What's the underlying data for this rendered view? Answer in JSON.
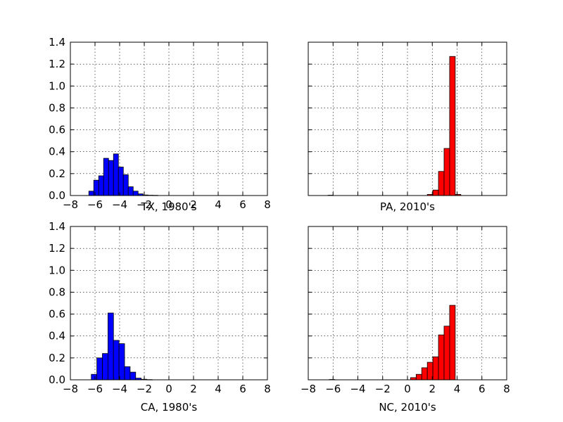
{
  "chart_data": [
    {
      "type": "bar",
      "xlabel": "TX, 1980's",
      "xlim": [
        -8,
        8
      ],
      "ylim": [
        0,
        1.4
      ],
      "xticks": [
        "−8",
        "−6",
        "−4",
        "−2",
        "0",
        "2",
        "4",
        "6",
        "8"
      ],
      "yticks": [
        "0.0",
        "0.2",
        "0.4",
        "0.6",
        "0.8",
        "1.0",
        "1.2",
        "1.4"
      ],
      "grid": true,
      "color": "#0000ff",
      "bin_edges": [
        -6.5,
        -6.1,
        -5.7,
        -5.3,
        -4.9,
        -4.5,
        -4.1,
        -3.7,
        -3.3,
        -2.9,
        -2.5,
        -2.1,
        -1.7,
        -1.3,
        -0.9
      ],
      "values": [
        0.04,
        0.14,
        0.18,
        0.34,
        0.32,
        0.38,
        0.26,
        0.19,
        0.08,
        0.04,
        0.015,
        0.005,
        0.003,
        0.002
      ]
    },
    {
      "type": "bar",
      "xlabel": "PA, 2010's",
      "xlim": [
        -8,
        8
      ],
      "ylim": [
        0,
        1.4
      ],
      "xticks": [],
      "yticks": [],
      "grid": true,
      "color": "#ff0000",
      "bin_edges": [
        -6.4,
        -6.0,
        1.6,
        2.05,
        2.5,
        2.95,
        3.4,
        3.85,
        4.3
      ],
      "values": [
        0.003,
        0.0,
        0.01,
        0.05,
        0.22,
        0.43,
        1.27,
        0.01
      ]
    },
    {
      "type": "bar",
      "xlabel": "CA, 1980's",
      "xlim": [
        -8,
        8
      ],
      "ylim": [
        0,
        1.4
      ],
      "xticks": [
        "−8",
        "−6",
        "−4",
        "−2",
        "0",
        "2",
        "4",
        "6",
        "8"
      ],
      "yticks": [
        "0.0",
        "0.2",
        "0.4",
        "0.6",
        "0.8",
        "1.0",
        "1.2",
        "1.4"
      ],
      "grid": true,
      "color": "#0000ff",
      "bin_edges": [
        -6.3,
        -5.85,
        -5.4,
        -4.95,
        -4.5,
        -4.05,
        -3.6,
        -3.15,
        -2.7,
        -2.25,
        -1.8,
        -1.35
      ],
      "values": [
        0.05,
        0.2,
        0.24,
        0.61,
        0.36,
        0.33,
        0.12,
        0.07,
        0.015,
        0.005,
        0.002
      ]
    },
    {
      "type": "bar",
      "xlabel": "NC, 2010's",
      "xlim": [
        -8,
        8
      ],
      "ylim": [
        0,
        1.4
      ],
      "xticks": [
        "−8",
        "−6",
        "−4",
        "−2",
        "0",
        "2",
        "4",
        "6",
        "8"
      ],
      "yticks": [],
      "grid": true,
      "color": "#ff0000",
      "bin_edges": [
        -6.3,
        -5.85,
        0.25,
        0.7,
        1.15,
        1.6,
        2.05,
        2.5,
        2.95,
        3.4,
        3.85
      ],
      "values": [
        0.003,
        0.0,
        0.02,
        0.05,
        0.11,
        0.16,
        0.21,
        0.41,
        0.49,
        0.68
      ]
    }
  ]
}
